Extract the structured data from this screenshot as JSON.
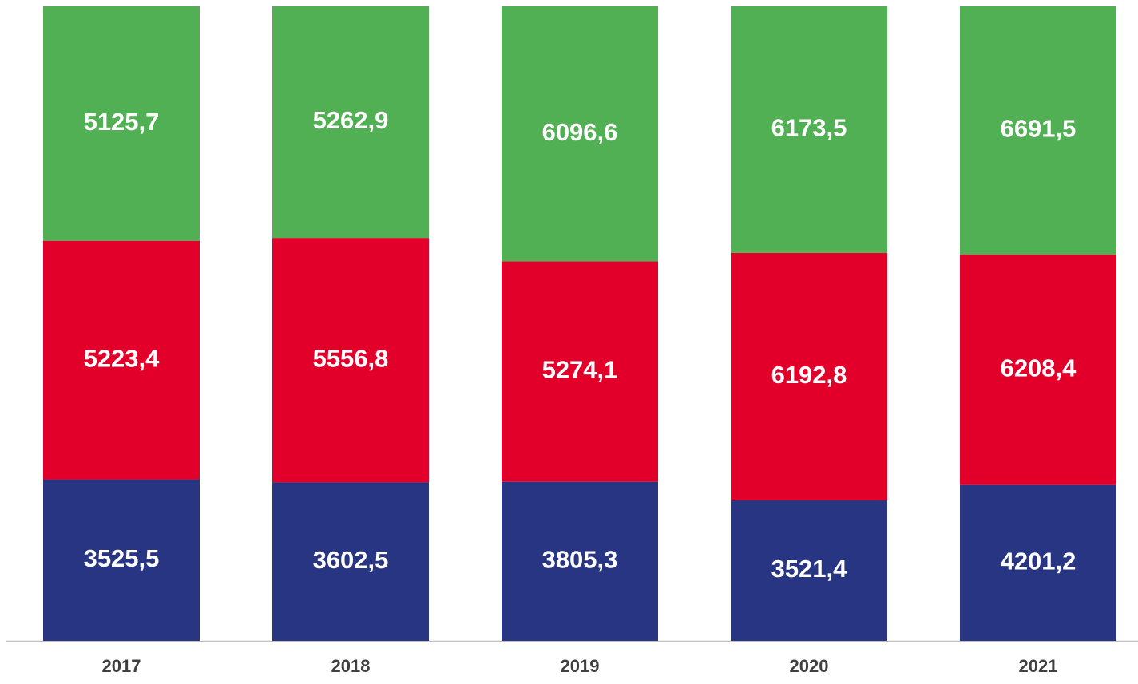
{
  "chart_data": {
    "type": "bar",
    "stacked": "percent",
    "categories": [
      "2017",
      "2018",
      "2019",
      "2020",
      "2021"
    ],
    "series": [
      {
        "color": "#283583",
        "values": [
          3525.5,
          3602.5,
          3805.3,
          3521.4,
          4201.2
        ],
        "value_labels": [
          "3525,5",
          "3602,5",
          "3805,3",
          "3521,4",
          "4201,2"
        ]
      },
      {
        "color": "#e2002a",
        "values": [
          5223.4,
          5556.8,
          5274.1,
          6192.8,
          6208.4
        ],
        "value_labels": [
          "5223,4",
          "5556,8",
          "5274,1",
          "6192,8",
          "6208,4"
        ]
      },
      {
        "color": "#52b054",
        "values": [
          5125.7,
          5262.9,
          6096.6,
          6173.5,
          6691.5
        ],
        "value_labels": [
          "5125,7",
          "5262,9",
          "6096,6",
          "6173,5",
          "6691,5"
        ]
      }
    ]
  }
}
